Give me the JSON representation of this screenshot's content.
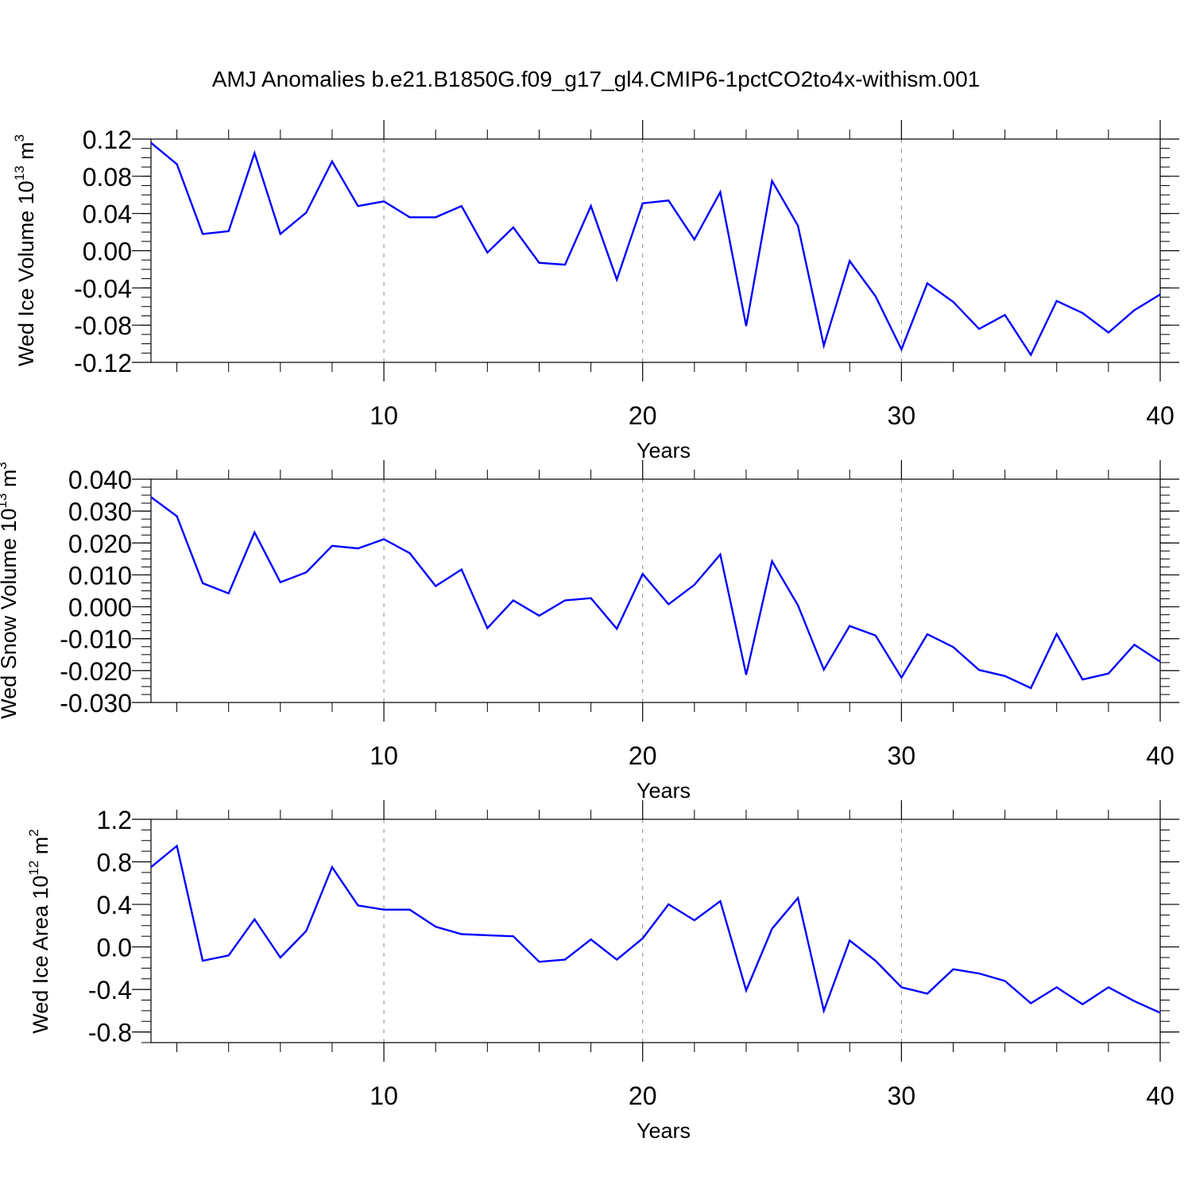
{
  "title": "AMJ Anomalies b.e21.B1850G.f09_g17_gl4.CMIP6-1pctCO2to4x-withism.001",
  "colors": {
    "line": "#0000ff",
    "axis": "#000000",
    "grid": "#888888"
  },
  "chart_data": [
    {
      "type": "line",
      "ylabel_main": "Wed Ice Volume 10",
      "ylabel_exp": "13",
      "ylabel_unit": "m",
      "ylabel_unit_exp": "3",
      "xlabel": "Years",
      "xlim": [
        1,
        40
      ],
      "ylim": [
        -0.12,
        0.12
      ],
      "yticks": [
        "0.12",
        "0.08",
        "0.04",
        "0.00",
        "-0.04",
        "-0.08",
        "-0.12"
      ],
      "ytick_values": [
        0.12,
        0.08,
        0.04,
        0.0,
        -0.04,
        -0.08,
        -0.12
      ],
      "xticks": [
        "10",
        "20",
        "30",
        "40"
      ],
      "xtick_values": [
        10,
        20,
        30,
        40
      ],
      "grid_x": [
        10,
        20,
        30
      ],
      "x": [
        1,
        2,
        3,
        4,
        5,
        6,
        7,
        8,
        9,
        10,
        11,
        12,
        13,
        14,
        15,
        16,
        17,
        18,
        19,
        20,
        21,
        22,
        23,
        24,
        25,
        26,
        27,
        28,
        29,
        30,
        31,
        32,
        33,
        34,
        35,
        36,
        37,
        38,
        39,
        40
      ],
      "values": [
        0.116,
        0.093,
        0.018,
        0.021,
        0.105,
        0.018,
        0.041,
        0.096,
        0.048,
        0.053,
        0.036,
        0.036,
        0.048,
        -0.002,
        0.025,
        -0.013,
        -0.015,
        0.048,
        -0.031,
        0.051,
        0.054,
        0.012,
        0.063,
        -0.081,
        0.075,
        0.027,
        -0.102,
        -0.011,
        -0.049,
        -0.106,
        -0.035,
        -0.055,
        -0.084,
        -0.069,
        -0.112,
        -0.054,
        -0.067,
        -0.088,
        -0.064,
        -0.047
      ]
    },
    {
      "type": "line",
      "ylabel_main": "Wed Snow Volume 10",
      "ylabel_exp": "13",
      "ylabel_unit": "m",
      "ylabel_unit_exp": "3",
      "xlabel": "Years",
      "xlim": [
        1,
        40
      ],
      "ylim": [
        -0.03,
        0.04
      ],
      "yticks": [
        "0.040",
        "0.030",
        "0.020",
        "0.010",
        "0.000",
        "-0.010",
        "-0.020",
        "-0.030"
      ],
      "ytick_values": [
        0.04,
        0.03,
        0.02,
        0.01,
        0.0,
        -0.01,
        -0.02,
        -0.03
      ],
      "xticks": [
        "10",
        "20",
        "30",
        "40"
      ],
      "xtick_values": [
        10,
        20,
        30,
        40
      ],
      "grid_x": [
        10,
        20,
        30
      ],
      "x": [
        1,
        2,
        3,
        4,
        5,
        6,
        7,
        8,
        9,
        10,
        11,
        12,
        13,
        14,
        15,
        16,
        17,
        18,
        19,
        20,
        21,
        22,
        23,
        24,
        25,
        26,
        27,
        28,
        29,
        30,
        31,
        32,
        33,
        34,
        35,
        36,
        37,
        38,
        39,
        40
      ],
      "values": [
        0.0344,
        0.0284,
        0.0074,
        0.0042,
        0.0233,
        0.0077,
        0.0108,
        0.0191,
        0.0183,
        0.0212,
        0.0168,
        0.0065,
        0.0117,
        -0.0067,
        0.002,
        -0.0028,
        0.002,
        0.0027,
        -0.0069,
        0.0103,
        0.0008,
        0.0069,
        0.0164,
        -0.0213,
        0.0143,
        0.0005,
        -0.0197,
        -0.006,
        -0.009,
        -0.0222,
        -0.0086,
        -0.0126,
        -0.0198,
        -0.0217,
        -0.0255,
        -0.0085,
        -0.0228,
        -0.0209,
        -0.0119,
        -0.0172
      ]
    },
    {
      "type": "line",
      "ylabel_main": "Wed Ice Area 10",
      "ylabel_exp": "12",
      "ylabel_unit": "m",
      "ylabel_unit_exp": "2",
      "xlabel": "Years",
      "xlim": [
        1,
        40
      ],
      "ylim": [
        -0.9,
        1.2
      ],
      "yticks": [
        "1.2",
        "0.8",
        "0.4",
        "0.0",
        "-0.4",
        "-0.8"
      ],
      "ytick_values": [
        1.2,
        0.8,
        0.4,
        0.0,
        -0.4,
        -0.8
      ],
      "xticks": [
        "10",
        "20",
        "30",
        "40"
      ],
      "xtick_values": [
        10,
        20,
        30,
        40
      ],
      "grid_x": [
        10,
        20,
        30
      ],
      "x": [
        1,
        2,
        3,
        4,
        5,
        6,
        7,
        8,
        9,
        10,
        11,
        12,
        13,
        14,
        15,
        16,
        17,
        18,
        19,
        20,
        21,
        22,
        23,
        24,
        25,
        26,
        27,
        28,
        29,
        30,
        31,
        32,
        33,
        34,
        35,
        36,
        37,
        38,
        39,
        40
      ],
      "values": [
        0.75,
        0.95,
        -0.13,
        -0.08,
        0.26,
        -0.1,
        0.15,
        0.75,
        0.39,
        0.35,
        0.35,
        0.19,
        0.12,
        0.11,
        0.1,
        -0.14,
        -0.12,
        0.07,
        -0.12,
        0.08,
        0.4,
        0.25,
        0.43,
        -0.41,
        0.17,
        0.46,
        -0.6,
        0.06,
        -0.13,
        -0.38,
        -0.44,
        -0.21,
        -0.25,
        -0.32,
        -0.53,
        -0.38,
        -0.54,
        -0.38,
        -0.51,
        -0.62
      ]
    }
  ]
}
